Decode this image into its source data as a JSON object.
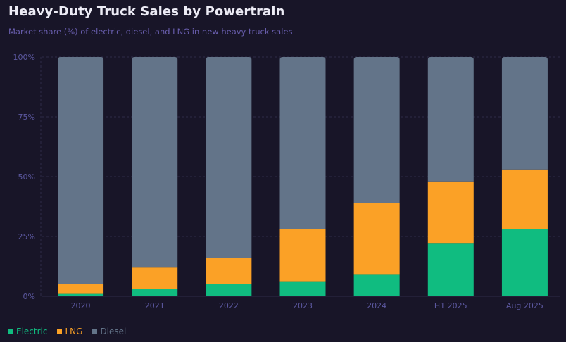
{
  "header": {
    "title": "Heavy-Duty Truck Sales by Powertrain",
    "subtitle": "Market share (%) of electric, diesel, and LNG in new heavy truck sales"
  },
  "colors": {
    "background": "#181528",
    "grid": "#2e2a48",
    "axis_text": "#5c58a0",
    "electric": "#10bc80",
    "lng": "#fba126",
    "diesel": "#637489"
  },
  "chart_data": {
    "type": "bar",
    "stacked": true,
    "title": "Heavy-Duty Truck Sales by Powertrain",
    "subtitle": "Market share (%) of electric, diesel, and LNG in new heavy truck sales",
    "xlabel": "",
    "ylabel": "",
    "categories": [
      "2020",
      "2021",
      "2022",
      "2023",
      "2024",
      "H1 2025",
      "Aug 2025"
    ],
    "series": [
      {
        "name": "Electric",
        "color_key": "electric",
        "values": [
          1,
          3,
          5,
          6,
          9,
          22,
          28
        ]
      },
      {
        "name": "LNG",
        "color_key": "lng",
        "values": [
          4,
          9,
          11,
          22,
          30,
          26,
          25
        ]
      },
      {
        "name": "Diesel",
        "color_key": "diesel",
        "values": [
          95,
          88,
          84,
          72,
          61,
          52,
          47
        ]
      }
    ],
    "ylim": [
      0,
      100
    ],
    "yticks": [
      0,
      25,
      50,
      75,
      100
    ],
    "ytick_labels": [
      "0%",
      "25%",
      "50%",
      "75%",
      "100%"
    ],
    "grid": true,
    "legend": {
      "position": "bottom-left",
      "entries": [
        "Electric",
        "LNG",
        "Diesel"
      ]
    }
  }
}
